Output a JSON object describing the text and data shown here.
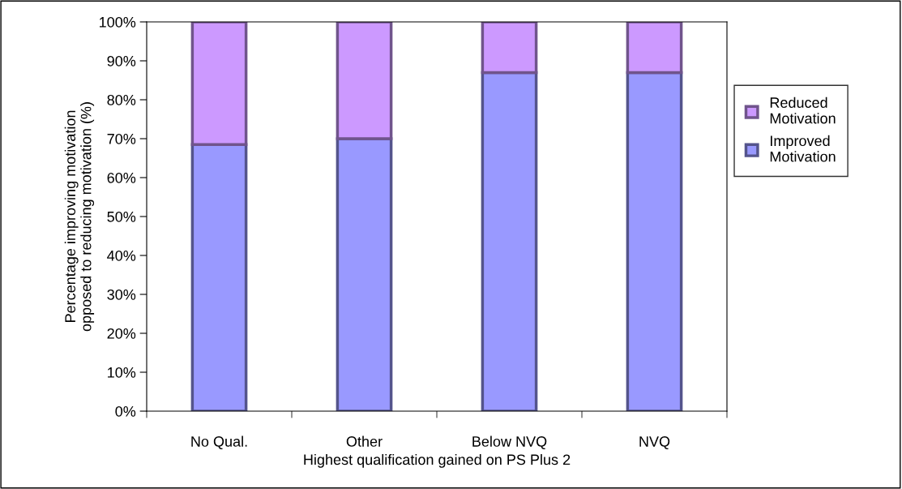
{
  "chart_data": {
    "type": "bar",
    "stacked": true,
    "xlabel": "Highest qualification gained on PS Plus 2",
    "ylabel": "Percentage improving motivation\nopposed to reducing motivation (%)",
    "categories": [
      "No Qual.",
      "Other",
      "Below NVQ",
      "NVQ"
    ],
    "series": [
      {
        "name": "Improved\nMotivation",
        "color": "#9999ff",
        "values": [
          68.5,
          70,
          87,
          87
        ]
      },
      {
        "name": "Reduced\nMotivation",
        "color": "#cc99ff",
        "values": [
          31.5,
          30,
          13,
          13
        ]
      }
    ],
    "ylim": [
      0,
      100
    ],
    "yticks": [
      {
        "value": 0,
        "label": "0%"
      },
      {
        "value": 10,
        "label": "10%"
      },
      {
        "value": 20,
        "label": "20%"
      },
      {
        "value": 30,
        "label": "30%"
      },
      {
        "value": 40,
        "label": "40%"
      },
      {
        "value": 50,
        "label": "50%"
      },
      {
        "value": 60,
        "label": "60%"
      },
      {
        "value": 70,
        "label": "70%"
      },
      {
        "value": 80,
        "label": "80%"
      },
      {
        "value": 90,
        "label": "90%"
      },
      {
        "value": 100,
        "label": "100%"
      }
    ],
    "grid": false,
    "legend": "right"
  }
}
